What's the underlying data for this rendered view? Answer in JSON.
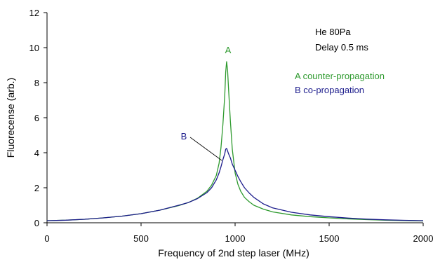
{
  "chart_data": {
    "type": "line",
    "title": "",
    "xlabel": "Frequency of 2nd step laser (MHz)",
    "ylabel": "Fluorecense (arb.)",
    "xlim": [
      0,
      2000
    ],
    "ylim": [
      0,
      12
    ],
    "xticks": [
      0,
      500,
      1000,
      1500,
      2000
    ],
    "yticks": [
      0,
      2,
      4,
      6,
      8,
      10,
      12
    ],
    "grid": false,
    "notes": [
      "He 80Pa",
      "Delay 0.5 ms"
    ],
    "legend": {
      "placement": "top-right",
      "entries": [
        "A counter-propagation",
        "B co-propagation"
      ]
    },
    "annotations": [
      {
        "text": "A",
        "series": "A",
        "color": "#2e9a2e"
      },
      {
        "text": "B",
        "series": "B",
        "color": "#1c1c8c"
      }
    ],
    "series": [
      {
        "name": "A counter-propagation",
        "color": "#2e9a2e",
        "x": [
          0,
          100,
          200,
          300,
          400,
          500,
          600,
          700,
          750,
          800,
          850,
          875,
          900,
          915,
          925,
          935,
          945,
          950,
          955,
          960,
          965,
          975,
          985,
          1000,
          1015,
          1030,
          1050,
          1075,
          1100,
          1150,
          1200,
          1300,
          1400,
          1500,
          1600,
          1700,
          1800,
          1900,
          2000
        ],
        "y": [
          0.12,
          0.15,
          0.2,
          0.28,
          0.38,
          0.52,
          0.72,
          0.98,
          1.15,
          1.4,
          1.8,
          2.15,
          2.7,
          3.4,
          4.3,
          5.6,
          7.3,
          8.6,
          9.2,
          8.7,
          7.7,
          5.8,
          4.2,
          2.85,
          2.2,
          1.8,
          1.45,
          1.2,
          1.0,
          0.78,
          0.62,
          0.45,
          0.35,
          0.28,
          0.22,
          0.18,
          0.15,
          0.13,
          0.11
        ]
      },
      {
        "name": "B co-propagation",
        "color": "#1c1c8c",
        "x": [
          0,
          100,
          200,
          300,
          400,
          500,
          600,
          700,
          750,
          800,
          850,
          875,
          900,
          915,
          925,
          935,
          945,
          950,
          955,
          960,
          965,
          975,
          985,
          1000,
          1015,
          1030,
          1050,
          1075,
          1100,
          1150,
          1200,
          1300,
          1400,
          1500,
          1600,
          1700,
          1800,
          1900,
          2000
        ],
        "y": [
          0.12,
          0.15,
          0.2,
          0.28,
          0.38,
          0.52,
          0.72,
          1.0,
          1.15,
          1.38,
          1.72,
          2.0,
          2.45,
          2.85,
          3.2,
          3.6,
          3.95,
          4.2,
          4.25,
          4.1,
          3.95,
          3.7,
          3.35,
          3.0,
          2.65,
          2.35,
          2.0,
          1.7,
          1.45,
          1.08,
          0.85,
          0.6,
          0.45,
          0.35,
          0.27,
          0.21,
          0.17,
          0.14,
          0.12
        ]
      }
    ]
  }
}
